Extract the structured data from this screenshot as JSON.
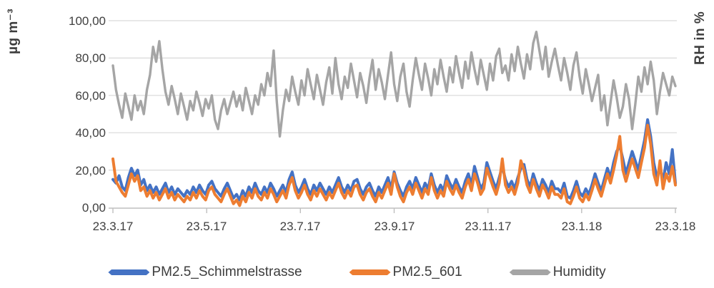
{
  "chart_data": {
    "type": "line",
    "title": "",
    "ylabel_left": "µg m⁻³",
    "ylabel_right": "RH in %",
    "x_ticks": [
      "23.3.17",
      "23.5.17",
      "23.7.17",
      "23.9.17",
      "23.11.17",
      "23.1.18",
      "23.3.18"
    ],
    "y_ticks": [
      "100,00",
      "80,00",
      "60,00",
      "40,00",
      "20,00",
      "0,00"
    ],
    "ylim_left": [
      0,
      100
    ],
    "ylim_right": [
      0,
      100
    ],
    "grid": true,
    "legend_position": "bottom",
    "x_range_note": "daily values from 23.3.17 to 23.3.18, sampled every ~2 days",
    "series": [
      {
        "name": "PM2.5_Schimmelstrasse",
        "color": "#4472C4",
        "axis": "left",
        "unit": "µg m⁻³",
        "values": [
          15,
          13,
          17,
          11,
          9,
          16,
          21,
          17,
          20,
          12,
          15,
          9,
          12,
          8,
          11,
          7,
          10,
          13,
          8,
          11,
          7,
          10,
          8,
          6,
          9,
          7,
          11,
          8,
          12,
          9,
          7,
          12,
          14,
          10,
          8,
          6,
          10,
          13,
          9,
          5,
          7,
          4,
          9,
          6,
          11,
          8,
          13,
          9,
          7,
          11,
          8,
          13,
          10,
          6,
          9,
          12,
          8,
          15,
          19,
          12,
          8,
          11,
          15,
          10,
          7,
          12,
          9,
          13,
          10,
          7,
          11,
          8,
          12,
          16,
          11,
          8,
          12,
          9,
          14,
          15,
          10,
          7,
          11,
          13,
          9,
          6,
          11,
          8,
          12,
          16,
          10,
          19,
          13,
          9,
          6,
          11,
          14,
          10,
          16,
          12,
          8,
          13,
          10,
          18,
          12,
          8,
          12,
          9,
          17,
          13,
          10,
          15,
          11,
          8,
          14,
          18,
          12,
          22,
          16,
          10,
          13,
          24,
          19,
          14,
          10,
          16,
          22,
          15,
          11,
          14,
          10,
          16,
          21,
          23,
          15,
          11,
          18,
          13,
          9,
          15,
          12,
          8,
          14,
          10,
          10,
          8,
          13,
          6,
          5,
          9,
          14,
          8,
          6,
          10,
          7,
          12,
          18,
          13,
          9,
          15,
          21,
          16,
          24,
          30,
          33,
          26,
          18,
          24,
          30,
          25,
          20,
          28,
          36,
          47,
          38,
          24,
          16,
          21,
          14,
          24,
          18,
          31,
          13
        ]
      },
      {
        "name": "PM2.5_601",
        "color": "#ED7D31",
        "axis": "left",
        "unit": "µg m⁻³",
        "values": [
          26,
          14,
          11,
          8,
          6,
          12,
          18,
          14,
          17,
          9,
          11,
          6,
          9,
          5,
          8,
          4,
          7,
          10,
          5,
          8,
          4,
          7,
          5,
          3,
          6,
          4,
          8,
          5,
          9,
          6,
          4,
          9,
          11,
          7,
          5,
          3,
          7,
          10,
          6,
          2,
          4,
          1,
          6,
          3,
          8,
          5,
          10,
          6,
          4,
          8,
          5,
          10,
          7,
          3,
          6,
          9,
          5,
          12,
          16,
          9,
          5,
          8,
          12,
          7,
          4,
          9,
          6,
          10,
          7,
          4,
          8,
          5,
          9,
          13,
          8,
          5,
          9,
          6,
          11,
          12,
          7,
          4,
          8,
          10,
          6,
          3,
          8,
          5,
          9,
          13,
          7,
          18,
          11,
          6,
          3,
          8,
          11,
          7,
          13,
          9,
          5,
          10,
          7,
          16,
          9,
          5,
          9,
          6,
          14,
          10,
          7,
          12,
          8,
          5,
          11,
          15,
          9,
          18,
          13,
          7,
          10,
          21,
          16,
          11,
          7,
          13,
          26,
          12,
          8,
          11,
          7,
          13,
          25,
          20,
          12,
          8,
          15,
          10,
          6,
          12,
          9,
          5,
          11,
          7,
          7,
          5,
          10,
          3,
          2,
          6,
          11,
          5,
          3,
          7,
          4,
          9,
          15,
          10,
          6,
          12,
          18,
          13,
          20,
          28,
          38,
          20,
          14,
          20,
          26,
          21,
          16,
          24,
          32,
          44,
          34,
          18,
          12,
          25,
          10,
          18,
          14,
          22,
          12
        ]
      },
      {
        "name": "Humidity",
        "color": "#A5A5A5",
        "axis": "right",
        "unit": "%",
        "values": [
          76,
          63,
          55,
          48,
          61,
          54,
          47,
          60,
          52,
          57,
          50,
          63,
          71,
          86,
          78,
          89,
          74,
          62,
          55,
          65,
          58,
          50,
          61,
          54,
          47,
          57,
          52,
          62,
          56,
          49,
          58,
          53,
          60,
          47,
          42,
          52,
          58,
          50,
          56,
          62,
          54,
          60,
          52,
          64,
          57,
          50,
          60,
          55,
          66,
          60,
          72,
          65,
          84,
          57,
          38,
          52,
          63,
          57,
          70,
          62,
          55,
          68,
          60,
          74,
          66,
          58,
          71,
          63,
          55,
          67,
          75,
          61,
          80,
          66,
          58,
          70,
          64,
          77,
          68,
          59,
          72,
          65,
          56,
          69,
          79,
          63,
          74,
          67,
          58,
          71,
          83,
          66,
          57,
          70,
          77,
          62,
          54,
          68,
          80,
          71,
          63,
          77,
          69,
          60,
          74,
          66,
          79,
          70,
          62,
          75,
          67,
          81,
          72,
          64,
          78,
          69,
          83,
          74,
          66,
          79,
          71,
          63,
          77,
          68,
          81,
          85,
          72,
          76,
          68,
          82,
          73,
          86,
          77,
          69,
          82,
          74,
          88,
          94,
          84,
          74,
          86,
          70,
          78,
          85,
          76,
          68,
          80,
          72,
          63,
          76,
          83,
          70,
          61,
          74,
          66,
          57,
          64,
          71,
          52,
          60,
          44,
          56,
          68,
          59,
          48,
          54,
          66,
          58,
          42,
          55,
          70,
          62,
          75,
          66,
          78,
          68,
          50,
          62,
          72,
          66,
          60,
          70,
          65
        ]
      }
    ],
    "colors": {
      "gridline": "#D9D9D9",
      "axis_line": "#BFBFBF",
      "tick_label": "#404040"
    }
  }
}
